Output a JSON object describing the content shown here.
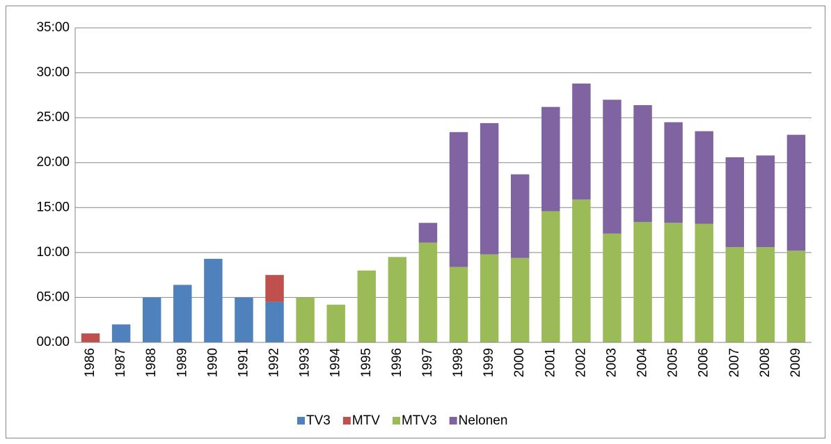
{
  "chart_data": {
    "type": "stacked_bar",
    "categories": [
      "1986",
      "1987",
      "1988",
      "1989",
      "1990",
      "1991",
      "1992",
      "1993",
      "1994",
      "1995",
      "1996",
      "1997",
      "1998",
      "1999",
      "2000",
      "2001",
      "2002",
      "2003",
      "2004",
      "2005",
      "2006",
      "2007",
      "2008",
      "2009"
    ],
    "series": [
      {
        "name": "TV3",
        "color": "#4f81bd",
        "values": [
          null,
          2.0,
          5.0,
          6.4,
          9.3,
          5.0,
          4.5,
          null,
          null,
          null,
          null,
          null,
          null,
          null,
          null,
          null,
          null,
          null,
          null,
          null,
          null,
          null,
          null,
          null
        ]
      },
      {
        "name": "MTV",
        "color": "#c0504d",
        "values": [
          1.0,
          null,
          null,
          null,
          null,
          null,
          3.0,
          null,
          null,
          null,
          null,
          null,
          null,
          null,
          null,
          null,
          null,
          null,
          null,
          null,
          null,
          null,
          null,
          null
        ]
      },
      {
        "name": "MTV3",
        "color": "#9bbb59",
        "values": [
          null,
          null,
          null,
          null,
          null,
          null,
          null,
          5.0,
          4.2,
          8.0,
          9.5,
          11.1,
          8.4,
          9.8,
          9.4,
          14.6,
          15.9,
          12.1,
          13.4,
          13.3,
          13.2,
          10.6,
          10.6,
          10.2
        ]
      },
      {
        "name": "Nelonen",
        "color": "#8064a2",
        "values": [
          null,
          null,
          null,
          null,
          null,
          null,
          null,
          null,
          null,
          null,
          null,
          2.2,
          15.0,
          14.6,
          9.3,
          11.6,
          12.9,
          14.9,
          13.0,
          11.2,
          10.3,
          10.0,
          10.2,
          12.9
        ]
      }
    ],
    "ylim": [
      0,
      35
    ],
    "yticks": [
      {
        "value": 0,
        "label": "00:00"
      },
      {
        "value": 5,
        "label": "05:00"
      },
      {
        "value": 10,
        "label": "10:00"
      },
      {
        "value": 15,
        "label": "15:00"
      },
      {
        "value": 20,
        "label": "20:00"
      },
      {
        "value": 25,
        "label": "25:00"
      },
      {
        "value": 30,
        "label": "30:00"
      },
      {
        "value": 35,
        "label": "35:00"
      }
    ],
    "grid": true,
    "legend": "bottom"
  }
}
